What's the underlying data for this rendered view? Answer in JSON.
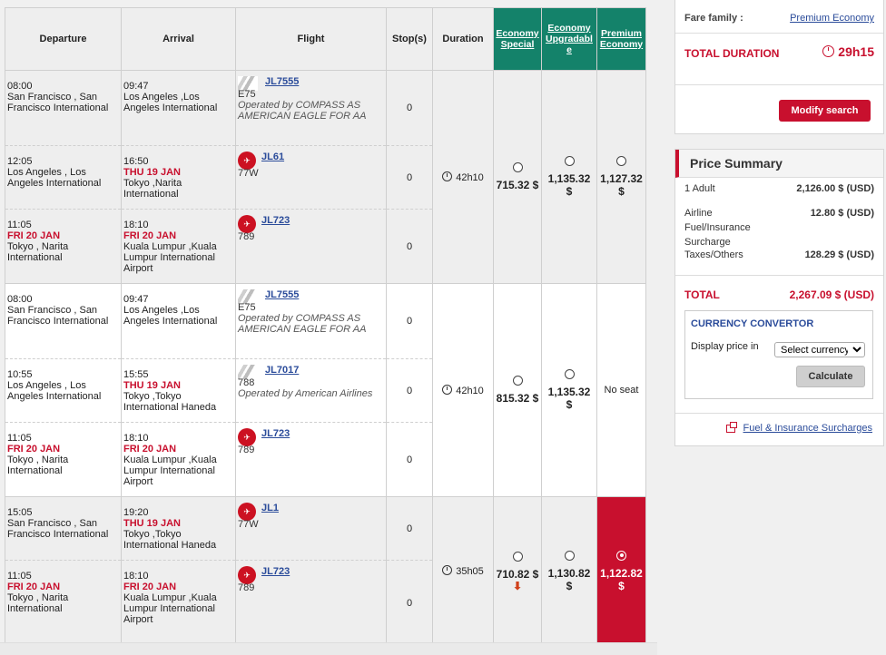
{
  "table": {
    "headers": {
      "departure": "Departure",
      "arrival": "Arrival",
      "flight": "Flight",
      "stops": "Stop(s)",
      "duration": "Duration",
      "econ_special": [
        "Economy",
        "Special"
      ],
      "econ_upgradable": [
        "Economy",
        "Upgradabl",
        "e"
      ],
      "premium": [
        "Premium",
        "Economy"
      ]
    },
    "groups": [
      {
        "duration": "42h10",
        "fares": {
          "special": "715.32 $",
          "upgradable": "1,135.32 $",
          "premium": [
            "1,127.32",
            "$"
          ]
        },
        "segments": [
          {
            "dep_time": "08:00",
            "dep_date": "",
            "dep_place": "San Francisco , San Francisco International",
            "arr_time": "09:47",
            "arr_date": "",
            "arr_place": "Los Angeles ,Los Angeles International",
            "flight": "JL7555",
            "aircraft": "E75",
            "operated": "Operated by COMPASS AS AMERICAN EAGLE FOR AA",
            "logo": "aa",
            "stops": "0"
          },
          {
            "dep_time": "12:05",
            "dep_date": "",
            "dep_place": "Los Angeles , Los Angeles International",
            "arr_time": "16:50",
            "arr_date": "THU 19 JAN",
            "arr_place": "Tokyo ,Narita International",
            "flight": "JL61",
            "aircraft": "77W",
            "operated": "",
            "logo": "jal",
            "stops": "0"
          },
          {
            "dep_time": "11:05",
            "dep_date": "FRI 20 JAN",
            "dep_place": "Tokyo , Narita International",
            "arr_time": "18:10",
            "arr_date": "FRI 20 JAN",
            "arr_place": "Kuala Lumpur ,Kuala Lumpur International Airport",
            "flight": "JL723",
            "aircraft": "789",
            "operated": "",
            "logo": "jal",
            "stops": "0"
          }
        ]
      },
      {
        "duration": "42h10",
        "fares": {
          "special": "815.32 $",
          "upgradable": "1,135.32 $",
          "premium_text": "No seat"
        },
        "segments": [
          {
            "dep_time": "08:00",
            "dep_date": "",
            "dep_place": "San Francisco , San Francisco International",
            "arr_time": "09:47",
            "arr_date": "",
            "arr_place": "Los Angeles ,Los Angeles International",
            "flight": "JL7555",
            "aircraft": "E75",
            "operated": "Operated by COMPASS AS AMERICAN EAGLE FOR AA",
            "logo": "aa",
            "stops": "0"
          },
          {
            "dep_time": "10:55",
            "dep_date": "",
            "dep_place": "Los Angeles , Los Angeles International",
            "arr_time": "15:55",
            "arr_date": "THU 19 JAN",
            "arr_place": "Tokyo ,Tokyo International Haneda",
            "flight": "JL7017",
            "aircraft": "788",
            "operated": "Operated by American Airlines",
            "logo": "aa",
            "stops": "0"
          },
          {
            "dep_time": "11:05",
            "dep_date": "FRI 20 JAN",
            "dep_place": "Tokyo , Narita International",
            "arr_time": "18:10",
            "arr_date": "FRI 20 JAN",
            "arr_place": "Kuala Lumpur ,Kuala Lumpur International Airport",
            "flight": "JL723",
            "aircraft": "789",
            "operated": "",
            "logo": "jal",
            "stops": "0"
          }
        ]
      },
      {
        "duration": "35h05",
        "fares": {
          "special": "710.82 $",
          "upgradable": "1,130.82 $",
          "premium": [
            "1,122.82",
            "$"
          ]
        },
        "segments": [
          {
            "dep_time": "15:05",
            "dep_date": "",
            "dep_place": "San Francisco , San Francisco International",
            "arr_time": "19:20",
            "arr_date": "THU 19 JAN",
            "arr_place": "Tokyo ,Tokyo International Haneda",
            "flight": "JL1",
            "aircraft": "77W",
            "operated": "",
            "logo": "jal",
            "stops": "0"
          },
          {
            "dep_time": "11:05",
            "dep_date": "FRI 20 JAN",
            "dep_place": "Tokyo , Narita International",
            "arr_time": "18:10",
            "arr_date": "FRI 20 JAN",
            "arr_place": "Kuala Lumpur ,Kuala Lumpur International Airport",
            "flight": "JL723",
            "aircraft": "789",
            "operated": "",
            "logo": "jal",
            "stops": "0"
          }
        ]
      }
    ]
  },
  "sidebar": {
    "fare_family_label": "Fare family :",
    "fare_family_value": "Premium Economy",
    "total_duration_label": "TOTAL DURATION",
    "total_duration_value": "29h15",
    "modify_button": "Modify search",
    "price_summary_title": "Price Summary",
    "adult_label": "1 Adult",
    "adult_value": "2,126.00 $ (USD)",
    "airline_surcharge_label": [
      "Airline",
      "Fuel/Insurance",
      "Surcharge"
    ],
    "airline_surcharge_value": "12.80 $ (USD)",
    "taxes_label": "Taxes/Others",
    "taxes_value": "128.29 $ (USD)",
    "total_label": "TOTAL",
    "total_value": "2,267.09 $ (USD)",
    "currency_title": "CURRENCY CONVERTOR",
    "display_price_label": "Display price in",
    "currency_select": "Select currency",
    "calculate_button": "Calculate",
    "surcharge_link": "Fuel & Insurance Surcharges"
  },
  "colors": {
    "accent_red": "#c8102e",
    "economy_green": "#14826a",
    "link_blue": "#2a4b9a"
  }
}
